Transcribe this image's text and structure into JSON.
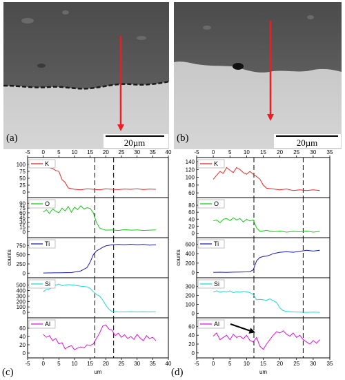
{
  "micrographs": [
    {
      "letter": "(a)",
      "scale_label": "20µm"
    },
    {
      "letter": "(b)",
      "scale_label": "20µm"
    }
  ],
  "colors": {
    "K": "#ee2222",
    "O": "#11cc11",
    "Ti": "#1a1ab4",
    "Si": "#11dddd",
    "Al": "#dd11dd",
    "arrow": "#ee1c24"
  },
  "chart_data": [
    {
      "type": "line",
      "panel_letter": "(c)",
      "xlabel": "um",
      "ylabel": "counts",
      "xlim": [
        -5,
        40
      ],
      "xticks": [
        -5,
        0,
        5,
        10,
        15,
        20,
        25,
        30,
        35,
        40
      ],
      "interfaces": [
        16.5,
        22.5
      ],
      "series": [
        {
          "name": "K",
          "ylim": [
            -10,
            110
          ],
          "yticks": [
            0,
            25,
            50,
            75,
            100
          ],
          "x": [
            0,
            1,
            2,
            3,
            4,
            5,
            6,
            7,
            8,
            10,
            12,
            14,
            16,
            18,
            20,
            22,
            24,
            26,
            28,
            30,
            32,
            34,
            36
          ],
          "y": [
            95,
            90,
            88,
            85,
            78,
            75,
            45,
            35,
            15,
            10,
            8,
            12,
            10,
            8,
            12,
            10,
            9,
            11,
            10,
            12,
            9,
            11,
            10
          ]
        },
        {
          "name": "O",
          "ylim": [
            -10,
            95
          ],
          "yticks": [
            0,
            15,
            30,
            45,
            60,
            75,
            90
          ],
          "x": [
            0,
            1,
            2,
            3,
            4,
            5,
            6,
            7,
            8,
            9,
            10,
            11,
            12,
            13,
            14,
            15,
            16,
            17,
            18,
            19,
            20,
            22,
            24,
            26,
            28,
            30,
            32,
            34,
            36
          ],
          "y": [
            62,
            70,
            58,
            72,
            65,
            60,
            75,
            66,
            80,
            62,
            78,
            70,
            82,
            72,
            76,
            74,
            60,
            30,
            12,
            8,
            5,
            6,
            4,
            7,
            5,
            6,
            4,
            5,
            6
          ]
        },
        {
          "name": "Ti",
          "ylim": [
            -50,
            850
          ],
          "yticks": [
            0,
            250,
            500,
            750
          ],
          "x": [
            0,
            3,
            6,
            9,
            12,
            14,
            15,
            16,
            17,
            18,
            19,
            20,
            22,
            24,
            26,
            28,
            30,
            32,
            34,
            36
          ],
          "y": [
            5,
            8,
            10,
            15,
            60,
            150,
            300,
            500,
            600,
            650,
            700,
            740,
            770,
            780,
            770,
            785,
            770,
            780,
            760,
            770
          ]
        },
        {
          "name": "Si",
          "ylim": [
            -50,
            560
          ],
          "yticks": [
            0,
            100,
            200,
            300,
            400,
            500
          ],
          "x": [
            0,
            1,
            2,
            3,
            4,
            5,
            6,
            8,
            10,
            12,
            14,
            15,
            16,
            17,
            18,
            19,
            20,
            21,
            22,
            24,
            26,
            28,
            30,
            32,
            34,
            36
          ],
          "y": [
            380,
            420,
            430,
            470,
            500,
            520,
            490,
            510,
            500,
            480,
            470,
            440,
            380,
            330,
            300,
            230,
            130,
            60,
            15,
            10,
            8,
            12,
            9,
            10,
            8,
            10
          ]
        },
        {
          "name": "Al",
          "ylim": [
            -5,
            75
          ],
          "yticks": [
            0,
            20,
            40,
            60
          ],
          "x": [
            0,
            1,
            2,
            3,
            4,
            5,
            6,
            7,
            8,
            9,
            10,
            11,
            12,
            13,
            14,
            15,
            16,
            17,
            18,
            19,
            20,
            21,
            22,
            23,
            24,
            25,
            26,
            27,
            28,
            29,
            30,
            31,
            32,
            33,
            34,
            35,
            36
          ],
          "y": [
            45,
            38,
            42,
            30,
            35,
            22,
            25,
            10,
            15,
            18,
            8,
            12,
            15,
            12,
            20,
            18,
            22,
            35,
            48,
            65,
            68,
            58,
            55,
            42,
            48,
            38,
            44,
            35,
            40,
            33,
            45,
            36,
            30,
            42,
            35,
            38,
            30
          ]
        }
      ]
    },
    {
      "type": "line",
      "panel_letter": "(d)",
      "xlabel": "um",
      "ylabel": "counts",
      "xlim": [
        -5,
        35
      ],
      "xticks": [
        -5,
        0,
        5,
        10,
        15,
        20,
        25,
        30,
        35
      ],
      "interfaces": [
        12.2,
        27
      ],
      "series": [
        {
          "name": "K",
          "ylim": [
            55,
            140
          ],
          "yticks": [
            60,
            80,
            100,
            120,
            140
          ],
          "x": [
            0,
            1,
            2,
            3,
            4,
            5,
            6,
            7,
            8,
            9,
            10,
            11,
            12,
            13,
            14,
            15,
            16,
            18,
            20,
            22,
            24,
            26,
            28,
            30,
            32
          ],
          "y": [
            95,
            105,
            115,
            110,
            125,
            118,
            112,
            125,
            120,
            112,
            108,
            115,
            108,
            102,
            95,
            80,
            72,
            70,
            68,
            70,
            66,
            68,
            66,
            68,
            66
          ]
        },
        {
          "name": "O",
          "ylim": [
            -5,
            90
          ],
          "yticks": [
            0,
            20,
            40,
            60,
            80
          ],
          "x": [
            0,
            1,
            2,
            3,
            4,
            5,
            6,
            7,
            8,
            9,
            10,
            11,
            12,
            13,
            14,
            16,
            18,
            20,
            22,
            24,
            26,
            28,
            30,
            32
          ],
          "y": [
            35,
            38,
            30,
            40,
            42,
            36,
            44,
            38,
            42,
            32,
            40,
            35,
            38,
            15,
            5,
            8,
            4,
            6,
            3,
            5,
            4,
            6,
            3,
            5
          ]
        },
        {
          "name": "Ti",
          "ylim": [
            -50,
            650
          ],
          "yticks": [
            0,
            200,
            400,
            600
          ],
          "x": [
            0,
            2,
            4,
            6,
            8,
            10,
            11,
            12,
            13,
            14,
            15,
            16,
            17,
            18,
            20,
            22,
            24,
            26,
            28,
            30,
            32
          ],
          "y": [
            5,
            8,
            6,
            10,
            12,
            15,
            20,
            60,
            250,
            320,
            340,
            350,
            370,
            400,
            430,
            440,
            430,
            450,
            470,
            455,
            470
          ]
        },
        {
          "name": "Si",
          "ylim": [
            -20,
            350
          ],
          "yticks": [
            0,
            100,
            200,
            300
          ],
          "x": [
            0,
            1,
            2,
            3,
            4,
            5,
            6,
            7,
            8,
            9,
            10,
            11,
            12,
            13,
            14,
            15,
            16,
            17,
            18,
            19,
            20,
            21,
            22,
            24,
            26,
            28,
            30,
            32
          ],
          "y": [
            240,
            250,
            235,
            245,
            240,
            250,
            230,
            240,
            235,
            245,
            240,
            230,
            210,
            150,
            155,
            150,
            145,
            160,
            140,
            120,
            60,
            30,
            20,
            15,
            12,
            10,
            12,
            10
          ]
        },
        {
          "name": "Al",
          "ylim": [
            -5,
            70
          ],
          "yticks": [
            0,
            20,
            40,
            60
          ],
          "x": [
            0,
            1,
            2,
            3,
            4,
            5,
            6,
            7,
            8,
            9,
            10,
            11,
            12,
            13,
            14,
            15,
            16,
            17,
            18,
            19,
            20,
            21,
            22,
            23,
            24,
            25,
            26,
            27,
            28,
            29,
            30,
            31,
            32
          ],
          "y": [
            38,
            45,
            30,
            35,
            40,
            30,
            42,
            35,
            38,
            32,
            40,
            28,
            25,
            35,
            15,
            8,
            20,
            30,
            40,
            48,
            45,
            50,
            42,
            38,
            45,
            35,
            40,
            30,
            25,
            20,
            28,
            22,
            30
          ]
        }
      ]
    }
  ]
}
